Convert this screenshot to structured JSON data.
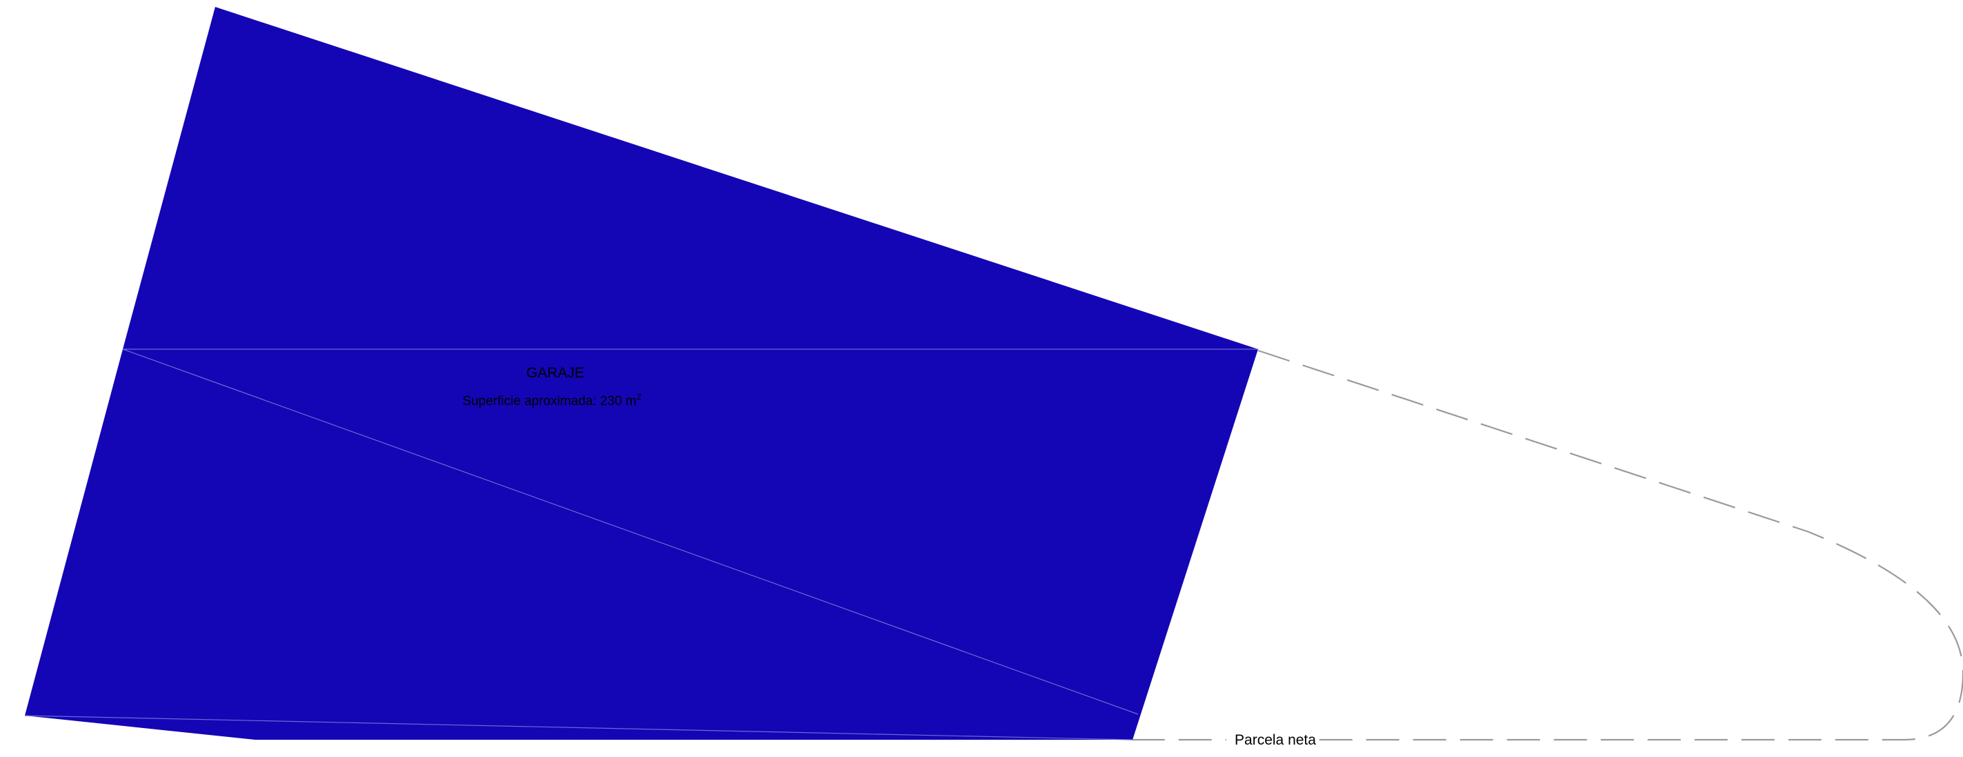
{
  "garage": {
    "name": "GARAJE",
    "area_prefix": "Superficie aproximada: 230 m",
    "area_superscript": "2"
  },
  "plot": {
    "label": "Parcela neta"
  },
  "colors": {
    "garage_fill": "#1406b4",
    "inner_lines": "#6a6ad8",
    "boundary_dash": "#9a9a9a",
    "background": "#ffffff"
  }
}
